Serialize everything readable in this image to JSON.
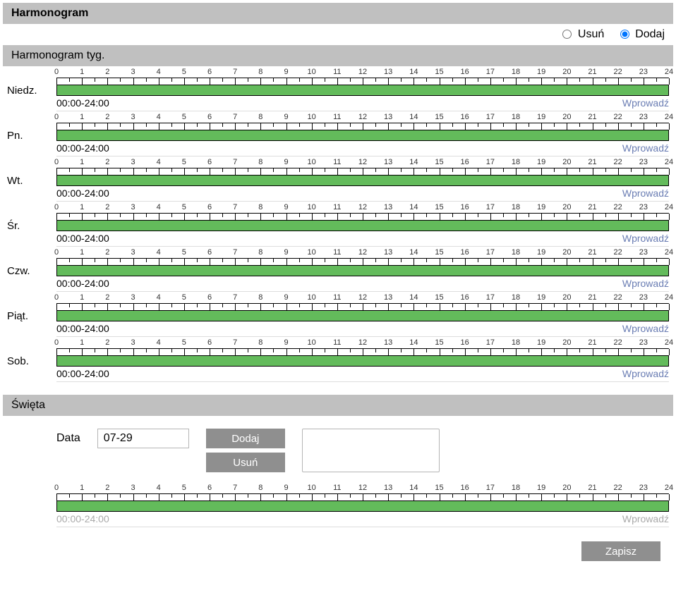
{
  "colors": {
    "bar_fill": "#63bb5b",
    "header_bg": "#c0c0c0",
    "link": "#6a7db3",
    "button_bg": "#8f8f8f",
    "button_text": "#ffffff",
    "border": "#b5b5b5",
    "disabled_text": "#aaaaaa"
  },
  "timeline": {
    "hours": [
      0,
      1,
      2,
      3,
      4,
      5,
      6,
      7,
      8,
      9,
      10,
      11,
      12,
      13,
      14,
      15,
      16,
      17,
      18,
      19,
      20,
      21,
      22,
      23,
      24
    ],
    "minor_per_hour": 1
  },
  "header": {
    "title": "Harmonogram"
  },
  "mode": {
    "delete_label": "Usuń",
    "add_label": "Dodaj",
    "selected": "add"
  },
  "weekly": {
    "title": "Harmonogram tyg.",
    "input_link": "Wprowadź",
    "days": [
      {
        "label": "Niedz.",
        "range": "00:00-24:00",
        "fill_start": 0,
        "fill_end": 24
      },
      {
        "label": "Pn.",
        "range": "00:00-24:00",
        "fill_start": 0,
        "fill_end": 24
      },
      {
        "label": "Wt.",
        "range": "00:00-24:00",
        "fill_start": 0,
        "fill_end": 24
      },
      {
        "label": "Śr.",
        "range": "00:00-24:00",
        "fill_start": 0,
        "fill_end": 24
      },
      {
        "label": "Czw.",
        "range": "00:00-24:00",
        "fill_start": 0,
        "fill_end": 24
      },
      {
        "label": "Piąt.",
        "range": "00:00-24:00",
        "fill_start": 0,
        "fill_end": 24
      },
      {
        "label": "Sob.",
        "range": "00:00-24:00",
        "fill_start": 0,
        "fill_end": 24
      }
    ]
  },
  "holidays": {
    "title": "Święta",
    "date_label": "Data",
    "date_value": "07-29",
    "add_button": "Dodaj",
    "delete_button": "Usuń",
    "range": "00:00-24:00",
    "input_link": "Wprowadź",
    "fill_start": 0,
    "fill_end": 24,
    "enabled": false
  },
  "save_button": "Zapisz"
}
